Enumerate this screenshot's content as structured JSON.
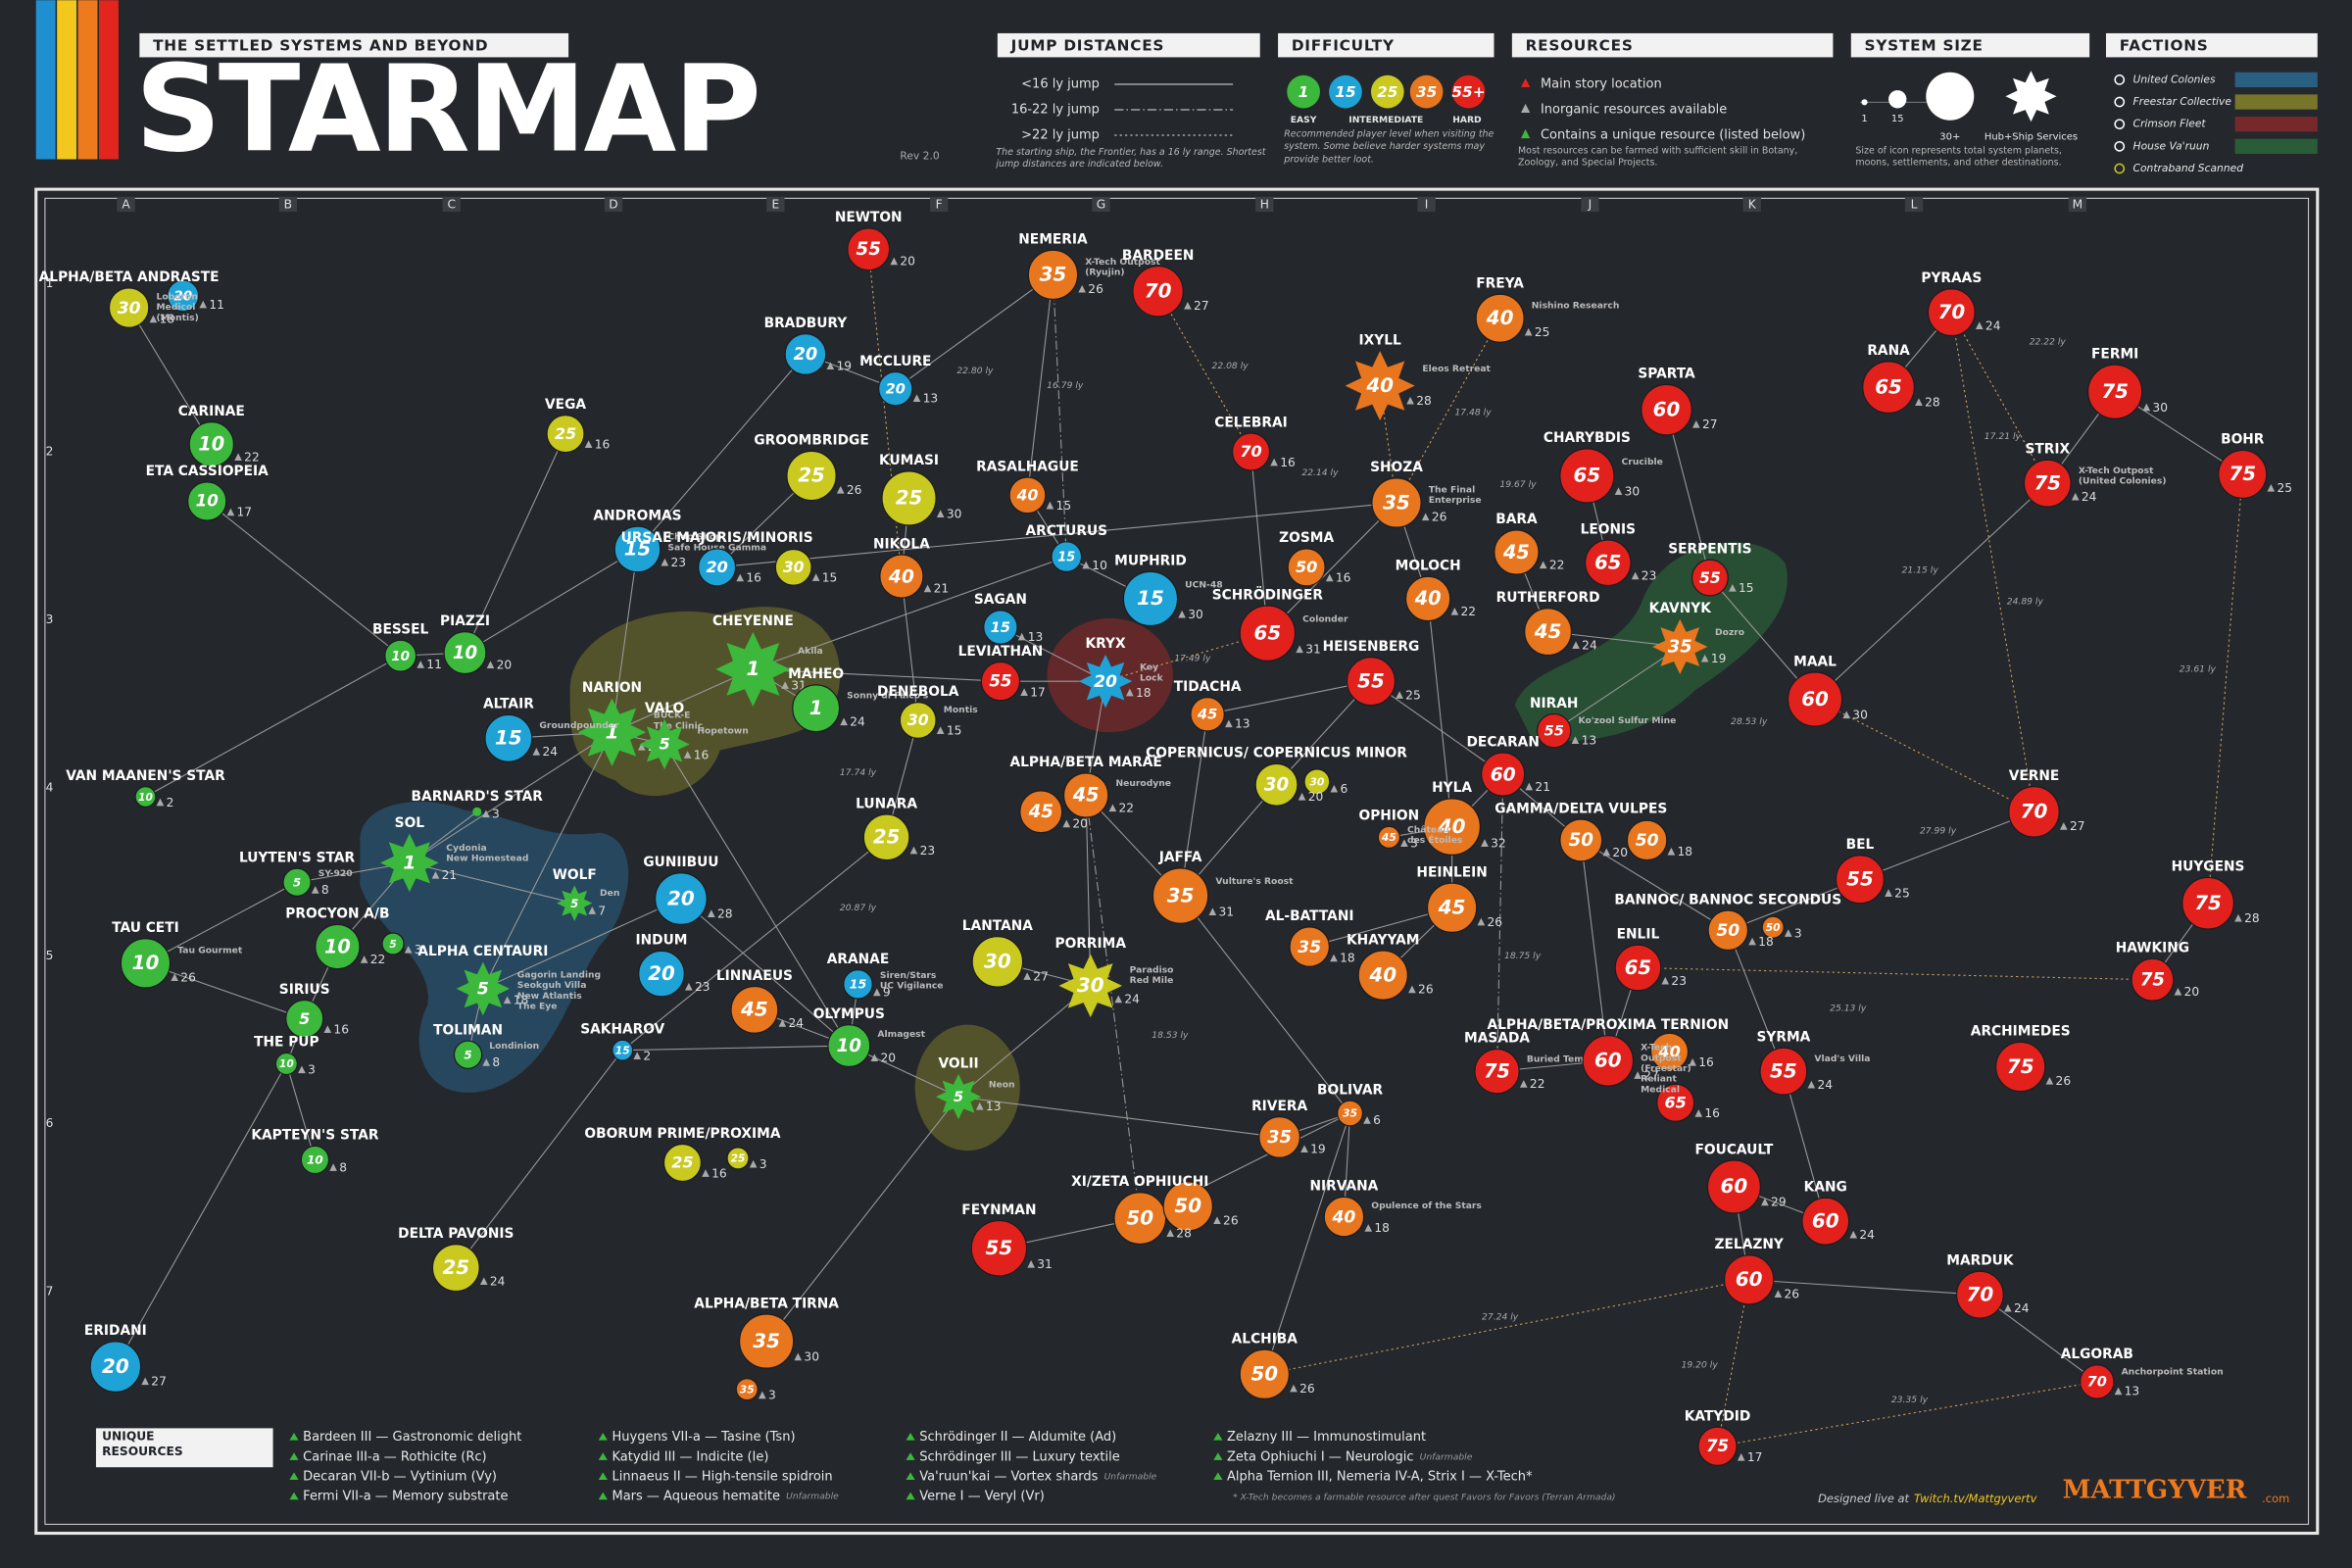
{
  "header": {
    "subtitle": "THE SETTLED SYSTEMS AND BEYOND",
    "title": "STARMAP",
    "revision": "Rev 2.0"
  },
  "legend": {
    "jump": {
      "title": "JUMP DISTANCES",
      "items": [
        "<16 ly jump",
        "16-22 ly jump",
        ">22 ly jump"
      ],
      "note": "The starting ship, the Frontier, has a 16 ly range. Shortest jump distances are indicated below."
    },
    "difficulty": {
      "title": "DIFFICULTY",
      "levels": [
        1,
        15,
        25,
        35,
        {
          "value": 55,
          "label": "55+"
        }
      ],
      "colors": [
        "#3cb83c",
        "#1fa3d6",
        "#c9c91f",
        "#e8761e",
        "#e2211d"
      ],
      "captions": [
        "EASY",
        "INTERMEDIATE",
        "HARD"
      ],
      "note": "Recommended player level when visiting the system. Some believe harder systems may provide better loot."
    },
    "resources": {
      "title": "RESOURCES",
      "items": [
        "Main story location",
        "Inorganic resources available",
        "Contains a unique resource (listed below)"
      ],
      "note": "Most resources can be farmed with sufficient skill in Botany, Zoology, and Special Projects."
    },
    "size": {
      "title": "SYSTEM SIZE",
      "labels": [
        "1",
        "15",
        "30+",
        "Hub+Ship Services"
      ],
      "note": "Size of icon represents total system planets, moons, settlements, and other destinations."
    },
    "factions": {
      "title": "FACTIONS",
      "items": [
        {
          "name": "United Colonies",
          "color": "#2b6f99"
        },
        {
          "name": "Freestar Collective",
          "color": "#8c8a2a"
        },
        {
          "name": "Crimson Fleet",
          "color": "#8c2a2a"
        },
        {
          "name": "House Va'ruun",
          "color": "#2b6b3b"
        },
        {
          "name": "Contraband Scanned",
          "color": "#c9c91f"
        }
      ]
    }
  },
  "grid": {
    "columns": [
      "A",
      "B",
      "C",
      "D",
      "E",
      "F",
      "G",
      "H",
      "I",
      "J",
      "K",
      "L",
      "M"
    ],
    "rows": [
      "1",
      "2",
      "3",
      "4",
      "5",
      "6",
      "7"
    ]
  },
  "systems": [
    {
      "name": "NEWTON",
      "levels": [
        55
      ],
      "planets": [
        20
      ]
    },
    {
      "name": "NEMERIA",
      "levels": [
        35
      ],
      "planets": [
        26
      ],
      "notes": [
        "X-Tech Outpost",
        "(Ryujin)"
      ]
    },
    {
      "name": "BARDEEN",
      "levels": [
        70
      ],
      "planets": [
        27
      ]
    },
    {
      "name": "BRADBURY",
      "levels": [
        20
      ],
      "planets": [
        19
      ]
    },
    {
      "name": "MCCLURE",
      "levels": [
        20
      ],
      "planets": [
        13
      ]
    },
    {
      "name": "FREYA",
      "levels": [
        40
      ],
      "planets": [
        25
      ],
      "notes": [
        "Nishino Research"
      ]
    },
    {
      "name": "IXYLL",
      "levels": [
        40
      ],
      "planets": [
        28
      ],
      "marker": "hub",
      "notes": [
        "Eleos Retreat"
      ]
    },
    {
      "name": "PYRAAS",
      "levels": [
        70
      ],
      "planets": [
        24
      ]
    },
    {
      "name": "RANA",
      "levels": [
        65
      ],
      "planets": [
        28
      ]
    },
    {
      "name": "FERMI",
      "levels": [
        75
      ],
      "planets": [
        30
      ]
    },
    {
      "name": "SPARTA",
      "levels": [
        60
      ],
      "planets": [
        27
      ]
    },
    {
      "name": "ALPHA/BETA ANDRASTE",
      "levels": [
        30,
        20
      ],
      "planets": [
        18,
        11
      ],
      "notes": [
        "Loboron",
        "Medicol",
        "(Montis)"
      ]
    },
    {
      "name": "CARINAE",
      "levels": [
        10
      ],
      "planets": [
        22
      ]
    },
    {
      "name": "ETA CASSIOPEIA",
      "levels": [
        10
      ],
      "planets": [
        17
      ]
    },
    {
      "name": "VEGA",
      "levels": [
        25
      ],
      "planets": [
        16
      ]
    },
    {
      "name": "GROOMBRIDGE",
      "levels": [
        25
      ],
      "planets": [
        26
      ]
    },
    {
      "name": "KUMASI",
      "levels": [
        25
      ],
      "planets": [
        30
      ]
    },
    {
      "name": "RASALHAGUE",
      "levels": [
        40
      ],
      "planets": [
        15
      ]
    },
    {
      "name": "CELEBRAI",
      "levels": [
        70
      ],
      "planets": [
        16
      ]
    },
    {
      "name": "SHOZA",
      "levels": [
        35
      ],
      "planets": [
        26
      ],
      "notes": [
        "The Final",
        "Enterprise"
      ]
    },
    {
      "name": "CHARYBDIS",
      "levels": [
        65
      ],
      "planets": [
        30
      ],
      "notes": [
        "Crucible"
      ]
    },
    {
      "name": "STRIX",
      "levels": [
        75
      ],
      "planets": [
        24
      ],
      "notes": [
        "X-Tech Outpost",
        "(United Colonies)"
      ]
    },
    {
      "name": "BOHR",
      "levels": [
        75
      ],
      "planets": [
        25
      ]
    },
    {
      "name": "ANDROMAS",
      "levels": [
        15
      ],
      "planets": [
        23
      ],
      "notes": [
        "Chop Shop",
        "Safe House Gamma"
      ]
    },
    {
      "name": "URSAE MAJORIS/MINORIS",
      "levels": [
        20,
        30
      ],
      "planets": [
        16,
        15
      ]
    },
    {
      "name": "NIKOLA",
      "levels": [
        40
      ],
      "planets": [
        21
      ]
    },
    {
      "name": "ARCTURUS",
      "levels": [
        15
      ],
      "planets": [
        10
      ]
    },
    {
      "name": "ZOSMA",
      "levels": [
        50
      ],
      "planets": [
        16
      ]
    },
    {
      "name": "BARA",
      "levels": [
        45
      ],
      "planets": [
        22
      ]
    },
    {
      "name": "LEONIS",
      "levels": [
        65
      ],
      "planets": [
        23
      ]
    },
    {
      "name": "MOLOCH",
      "levels": [
        40
      ],
      "planets": [
        22
      ]
    },
    {
      "name": "SERPENTIS",
      "levels": [
        55
      ],
      "planets": [
        15
      ]
    },
    {
      "name": "MUPHRID",
      "levels": [
        15
      ],
      "planets": [
        30
      ],
      "notes": [
        "UCN-48"
      ]
    },
    {
      "name": "SCHRÖDINGER",
      "levels": [
        65
      ],
      "planets": [
        31
      ],
      "notes": [
        "Colonder"
      ]
    },
    {
      "name": "RUTHERFORD",
      "levels": [
        45
      ],
      "planets": [
        24
      ]
    },
    {
      "name": "KAVNYK",
      "levels": [
        35
      ],
      "planets": [
        19
      ],
      "marker": "hub",
      "notes": [
        "Dozro"
      ]
    },
    {
      "name": "BESSEL",
      "levels": [
        10
      ],
      "planets": [
        11
      ]
    },
    {
      "name": "PIAZZI",
      "levels": [
        10
      ],
      "planets": [
        20
      ]
    },
    {
      "name": "CHEYENNE",
      "levels": [
        1
      ],
      "planets": [
        31
      ],
      "marker": "hub",
      "notes": [
        "Akila"
      ]
    },
    {
      "name": "SAGAN",
      "levels": [
        15
      ],
      "planets": [
        13
      ]
    },
    {
      "name": "LEVIATHAN",
      "levels": [
        55
      ],
      "planets": [
        17
      ]
    },
    {
      "name": "KRYX",
      "levels": [
        20
      ],
      "planets": [
        18
      ],
      "marker": "hub",
      "notes": [
        "Key",
        "Lock"
      ]
    },
    {
      "name": "MAHEO",
      "levels": [
        1
      ],
      "planets": [
        24
      ],
      "notes": [
        "Sonny di Falco's"
      ]
    },
    {
      "name": "HEISENBERG",
      "levels": [
        55
      ],
      "planets": [
        25
      ]
    },
    {
      "name": "MAAL",
      "levels": [
        60
      ],
      "planets": [
        30
      ]
    },
    {
      "name": "DENEBOLA",
      "levels": [
        30
      ],
      "planets": [
        15
      ],
      "notes": [
        "Montis"
      ]
    },
    {
      "name": "TIDACHA",
      "levels": [
        45
      ],
      "planets": [
        13
      ]
    },
    {
      "name": "NIRAH",
      "levels": [
        55
      ],
      "planets": [
        13
      ],
      "notes": [
        "Ko'zool Sulfur Mine"
      ]
    },
    {
      "name": "NARION",
      "levels": [
        1
      ],
      "planets": [
        27
      ],
      "marker": "hub",
      "notes": [
        "BUCK-E",
        "The Clinic"
      ]
    },
    {
      "name": "VALO",
      "levels": [
        5
      ],
      "planets": [
        16
      ],
      "marker": "hub",
      "notes": [
        "Hopetown"
      ]
    },
    {
      "name": "ALTAIR",
      "levels": [
        15
      ],
      "planets": [
        24
      ],
      "notes": [
        "Groundpounder"
      ]
    },
    {
      "name": "VAN MAANEN'S STAR",
      "levels": [
        10
      ],
      "planets": [
        2
      ]
    },
    {
      "name": "DECARAN",
      "levels": [
        60
      ],
      "planets": [
        21
      ]
    },
    {
      "name": "ALPHA/BETA MARAE",
      "levels": [
        45,
        45
      ],
      "planets": [
        22,
        20
      ],
      "notes": [
        "Neurodyne"
      ]
    },
    {
      "name": "COPERNICUS/ COPERNICUS MINOR",
      "levels": [
        30,
        30
      ],
      "planets": [
        20,
        6
      ]
    },
    {
      "name": "BARNARD'S STAR",
      "planets": [
        3
      ]
    },
    {
      "name": "HYLA",
      "levels": [
        40
      ],
      "planets": [
        32
      ]
    },
    {
      "name": "OPHION",
      "levels": [
        45
      ],
      "planets": [
        3
      ],
      "notes": [
        "Château",
        "des Étoiles"
      ]
    },
    {
      "name": "GAMMA/DELTA VULPES",
      "levels": [
        50,
        50
      ],
      "planets": [
        20,
        18
      ]
    },
    {
      "name": "VERNE",
      "levels": [
        70
      ],
      "planets": [
        27
      ]
    },
    {
      "name": "SOL",
      "levels": [
        1
      ],
      "planets": [
        21
      ],
      "marker": "hub",
      "notes": [
        "Cydonia",
        "New Homestead"
      ]
    },
    {
      "name": "LUYTEN'S STAR",
      "levels": [
        5
      ],
      "planets": [
        8
      ],
      "notes": [
        "SY-920"
      ]
    },
    {
      "name": "LUNARA",
      "levels": [
        25
      ],
      "planets": [
        23
      ]
    },
    {
      "name": "BEL",
      "levels": [
        55
      ],
      "planets": [
        25
      ]
    },
    {
      "name": "HUYGENS",
      "levels": [
        75
      ],
      "planets": [
        28
      ]
    },
    {
      "name": "WOLF",
      "levels": [
        5
      ],
      "planets": [
        7
      ],
      "marker": "hub",
      "notes": [
        "Den"
      ]
    },
    {
      "name": "GUNIIBUU",
      "levels": [
        20
      ],
      "planets": [
        28
      ]
    },
    {
      "name": "JAFFA",
      "levels": [
        35
      ],
      "planets": [
        31
      ],
      "notes": [
        "Vulture's Roost"
      ]
    },
    {
      "name": "HEINLEIN",
      "levels": [
        45
      ],
      "planets": [
        26
      ]
    },
    {
      "name": "BANNOC/ BANNOC SECONDUS",
      "levels": [
        50,
        50
      ],
      "planets": [
        18,
        3
      ]
    },
    {
      "name": "AL-BATTANI",
      "levels": [
        35
      ],
      "planets": [
        18
      ]
    },
    {
      "name": "TAU CETI",
      "levels": [
        10
      ],
      "planets": [
        26
      ],
      "notes": [
        "Tau Gourmet"
      ]
    },
    {
      "name": "PROCYON A/B",
      "levels": [
        10,
        5
      ],
      "planets": [
        22,
        3
      ]
    },
    {
      "name": "ALPHA CENTAURI",
      "levels": [
        5
      ],
      "planets": [
        18
      ],
      "marker": "hub",
      "notes": [
        "Gagorin Landing",
        "Seokguh Villa",
        "New Atlantis",
        "The Eye"
      ]
    },
    {
      "name": "INDUM",
      "levels": [
        20
      ],
      "planets": [
        23
      ]
    },
    {
      "name": "LANTANA",
      "levels": [
        30
      ],
      "planets": [
        27
      ]
    },
    {
      "name": "PORRIMA",
      "levels": [
        30
      ],
      "planets": [
        24
      ],
      "marker": "hub",
      "notes": [
        "Paradiso",
        "Red Mile"
      ]
    },
    {
      "name": "KHAYYAM",
      "levels": [
        40
      ],
      "planets": [
        26
      ]
    },
    {
      "name": "HAWKING",
      "levels": [
        75
      ],
      "planets": [
        20
      ]
    },
    {
      "name": "ARANAE",
      "levels": [
        15
      ],
      "planets": [
        9
      ],
      "notes": [
        "Siren/Stars",
        "UC Vigilance"
      ]
    },
    {
      "name": "ENLIL",
      "levels": [
        65
      ],
      "planets": [
        23
      ]
    },
    {
      "name": "LINNAEUS",
      "levels": [
        45
      ],
      "planets": [
        24
      ]
    },
    {
      "name": "SIRIUS",
      "levels": [
        5
      ],
      "planets": [
        16
      ]
    },
    {
      "name": "OLYMPUS",
      "levels": [
        10
      ],
      "planets": [
        20
      ],
      "notes": [
        "Almagest"
      ]
    },
    {
      "name": "SAKHAROV",
      "levels": [
        15
      ],
      "planets": [
        2
      ]
    },
    {
      "name": "THE PUP",
      "levels": [
        10
      ],
      "planets": [
        3
      ]
    },
    {
      "name": "TOLIMAN",
      "levels": [
        5
      ],
      "planets": [
        8
      ],
      "notes": [
        "Londinion"
      ]
    },
    {
      "name": "MASADA",
      "levels": [
        75
      ],
      "planets": [
        22
      ],
      "notes": [
        "Buried Temple"
      ]
    },
    {
      "name": "ALPHA/BETA/PROXIMA TERNION",
      "levels": [
        60,
        40,
        65
      ],
      "planets": [
        27,
        16,
        16
      ],
      "notes": [
        "X-Tech",
        "Outpost",
        "(Freestar)",
        "Reliant",
        "Medical"
      ]
    },
    {
      "name": "SYRMA",
      "levels": [
        55
      ],
      "planets": [
        24
      ],
      "notes": [
        "Vlad's Villa"
      ]
    },
    {
      "name": "ARCHIMEDES",
      "levels": [
        75
      ],
      "planets": [
        26
      ]
    },
    {
      "name": "VOLII",
      "levels": [
        5
      ],
      "planets": [
        13
      ],
      "marker": "hub",
      "notes": [
        "Neon"
      ]
    },
    {
      "name": "BOLIVAR",
      "levels": [
        35
      ],
      "planets": [
        6
      ]
    },
    {
      "name": "RIVERA",
      "levels": [
        35
      ],
      "planets": [
        19
      ]
    },
    {
      "name": "KAPTEYN'S STAR",
      "levels": [
        10
      ],
      "planets": [
        8
      ]
    },
    {
      "name": "OBORUM PRIME/PROXIMA",
      "levels": [
        25,
        25
      ],
      "planets": [
        16,
        3
      ]
    },
    {
      "name": "FOUCAULT",
      "levels": [
        60
      ],
      "planets": [
        29
      ]
    },
    {
      "name": "KANG",
      "levels": [
        60
      ],
      "planets": [
        24
      ]
    },
    {
      "name": "XI/ZETA OPHIUCHI",
      "levels": [
        50,
        50
      ],
      "planets": [
        28,
        26
      ]
    },
    {
      "name": "NIRVANA",
      "levels": [
        40
      ],
      "planets": [
        18
      ],
      "notes": [
        "Opulence of the Stars"
      ]
    },
    {
      "name": "FEYNMAN",
      "levels": [
        55
      ],
      "planets": [
        31
      ]
    },
    {
      "name": "DELTA PAVONIS",
      "levels": [
        25
      ],
      "planets": [
        24
      ]
    },
    {
      "name": "ZELAZNY",
      "levels": [
        60
      ],
      "planets": [
        26
      ]
    },
    {
      "name": "MARDUK",
      "levels": [
        70
      ],
      "planets": [
        24
      ]
    },
    {
      "name": "ERIDANI",
      "levels": [
        20
      ],
      "planets": [
        27
      ]
    },
    {
      "name": "ALPHA/BETA TIRNA",
      "levels": [
        35,
        35
      ],
      "planets": [
        30,
        3
      ]
    },
    {
      "name": "ALCHIBA",
      "levels": [
        50
      ],
      "planets": [
        26
      ]
    },
    {
      "name": "ALGORAB",
      "levels": [
        70
      ],
      "planets": [
        13
      ],
      "notes": [
        "Anchorpoint Station"
      ]
    },
    {
      "name": "KATYDID",
      "levels": [
        75
      ],
      "planets": [
        17
      ]
    }
  ],
  "jump_labels": [
    "22.80 ly",
    "16.79 ly",
    "22.08 ly",
    "17.48 ly",
    "22.14 ly",
    "19.67 ly",
    "17.49 ly",
    "17.74 ly",
    "20.87 ly",
    "18.53 ly",
    "18.75 ly",
    "21.15 ly",
    "24.89 ly",
    "22.22 ly",
    "17.21 ly",
    "23.61 ly",
    "28.53 ly",
    "27.99 ly",
    "25.13 ly",
    "27.24 ly",
    "19.20 ly",
    "23.35 ly"
  ],
  "unique_resources": {
    "title": "UNIQUE RESOURCES",
    "columns": [
      [
        {
          "text": "Bardeen III — Gastronomic delight"
        },
        {
          "text": "Carinae III-a — Rothicite (Rc)"
        },
        {
          "text": "Decaran VII-b — Vytinium (Vy)"
        },
        {
          "text": "Fermi VII-a — Memory substrate"
        }
      ],
      [
        {
          "text": "Huygens VII-a — Tasine (Tsn)"
        },
        {
          "text": "Katydid III — Indicite (Ie)"
        },
        {
          "text": "Linnaeus II — High-tensile spidroin"
        },
        {
          "text": "Mars — Aqueous hematite",
          "note": "Unfarmable"
        }
      ],
      [
        {
          "text": "Schrödinger II — Aldumite (Ad)"
        },
        {
          "text": "Schrödinger III — Luxury textile"
        },
        {
          "text": "Va'ruun'kai — Vortex shards",
          "note": "Unfarmable"
        },
        {
          "text": "Verne I — Veryl (Vr)"
        }
      ],
      [
        {
          "text": "Zelazny III — Immunostimulant"
        },
        {
          "text": "Zeta Ophiuchi I — Neurologic",
          "note": "Unfarmable"
        },
        {
          "text": "Alpha Ternion III, Nemeria IV-A, Strix I — X-Tech*"
        }
      ]
    ],
    "footnote": "* X-Tech becomes a farmable resource after quest Favors for Favors (Terran Armada)"
  },
  "credit": {
    "prefix": "Designed live at",
    "link": "Twitch.tv/Mattgyvertv",
    "brand": "MATTGYVER",
    "suffix": ".com"
  }
}
